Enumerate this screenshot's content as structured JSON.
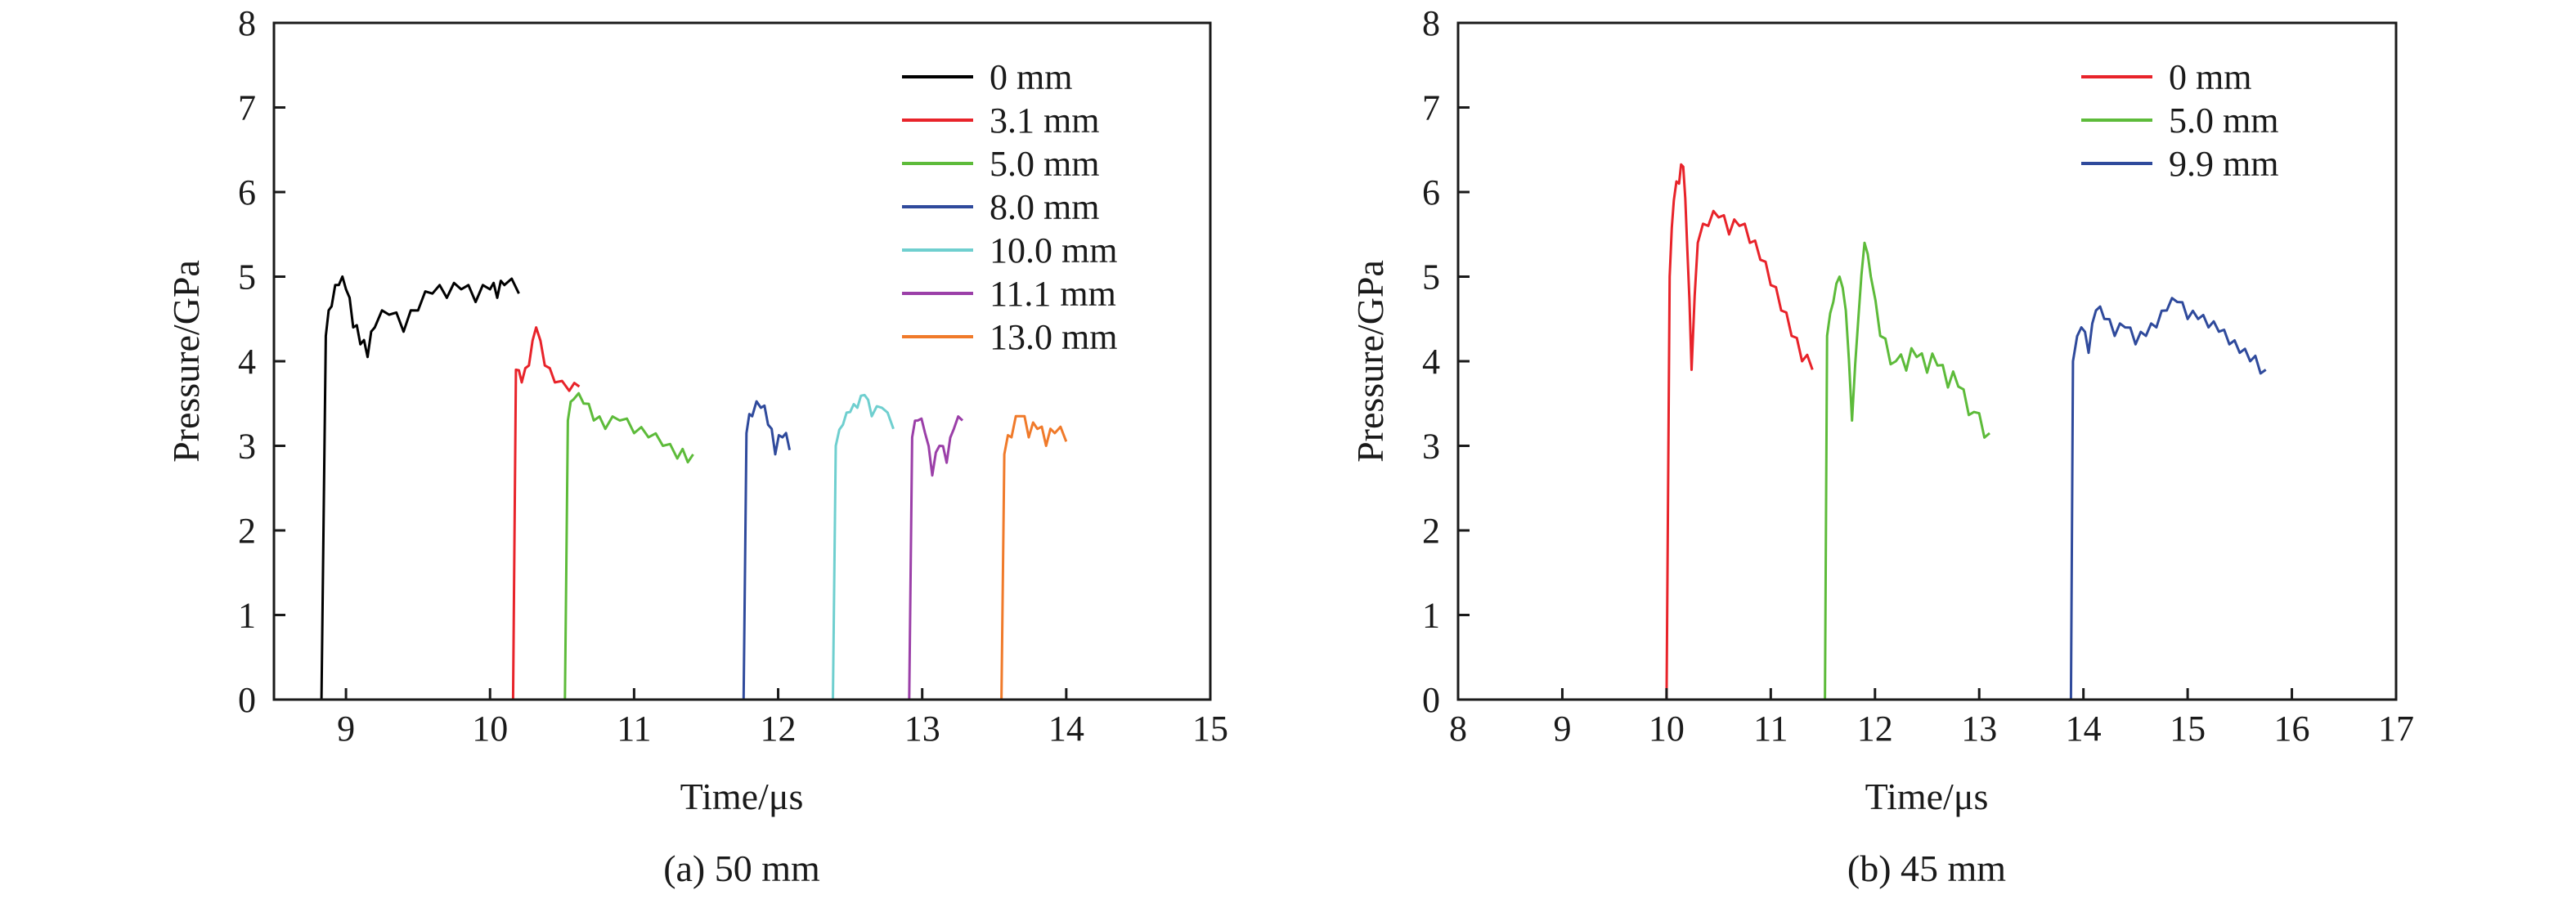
{
  "chart_data": [
    {
      "type": "line",
      "caption": "(a) 50 mm",
      "xlabel": "Time/μs",
      "ylabel": "Pressure/GPa",
      "xlim": [
        8.5,
        15
      ],
      "ylim": [
        0,
        8
      ],
      "xticks": [
        9,
        10,
        11,
        12,
        13,
        14,
        15
      ],
      "yticks": [
        0,
        1,
        2,
        3,
        4,
        5,
        6,
        7,
        8
      ],
      "grid": false,
      "legend": "top-right",
      "series": [
        {
          "name": "0 mm",
          "color": "#000000",
          "x": [
            8.5,
            8.83,
            8.86,
            8.9,
            8.95,
            9.0,
            9.05,
            9.1,
            9.15,
            9.2,
            9.3,
            9.4,
            9.5,
            9.6,
            9.7,
            9.8,
            9.9,
            10.0,
            10.05,
            10.1,
            10.2
          ],
          "y": [
            0,
            0,
            4.3,
            4.65,
            4.9,
            4.85,
            4.4,
            4.2,
            4.05,
            4.4,
            4.55,
            4.35,
            4.6,
            4.8,
            4.75,
            4.85,
            4.7,
            4.85,
            4.75,
            4.9,
            4.8
          ]
        },
        {
          "name": "3.1 mm",
          "color": "#e8232a",
          "x": [
            10.16,
            10.18,
            10.22,
            10.27,
            10.32,
            10.38,
            10.45,
            10.55,
            10.62
          ],
          "y": [
            0,
            3.9,
            3.75,
            3.95,
            4.4,
            3.95,
            3.75,
            3.65,
            3.7
          ]
        },
        {
          "name": "5.0 mm",
          "color": "#5dbb3a",
          "x": [
            10.52,
            10.54,
            10.58,
            10.65,
            10.72,
            10.8,
            10.9,
            11.0,
            11.1,
            11.2,
            11.3,
            11.41
          ],
          "y": [
            0,
            3.3,
            3.55,
            3.5,
            3.3,
            3.2,
            3.3,
            3.15,
            3.1,
            3.0,
            2.85,
            2.9
          ]
        },
        {
          "name": "8.0 mm",
          "color": "#2f4a9c",
          "x": [
            11.76,
            11.78,
            11.82,
            11.88,
            11.93,
            11.98,
            12.03,
            12.08
          ],
          "y": [
            0,
            3.15,
            3.35,
            3.45,
            3.25,
            2.9,
            3.1,
            2.95
          ]
        },
        {
          "name": "10.0 mm",
          "color": "#6fcfcf",
          "x": [
            12.38,
            12.4,
            12.45,
            12.5,
            12.55,
            12.6,
            12.65,
            12.72,
            12.8
          ],
          "y": [
            0,
            3.0,
            3.25,
            3.4,
            3.45,
            3.6,
            3.35,
            3.45,
            3.2
          ]
        },
        {
          "name": "11.1 mm",
          "color": "#9b3fa8",
          "x": [
            12.91,
            12.93,
            12.97,
            13.02,
            13.07,
            13.12,
            13.17,
            13.22,
            13.28
          ],
          "y": [
            0,
            3.1,
            3.3,
            3.15,
            2.65,
            3.0,
            2.8,
            3.2,
            3.3
          ]
        },
        {
          "name": "13.0 mm",
          "color": "#f07a2a",
          "x": [
            13.55,
            13.57,
            13.62,
            13.68,
            13.74,
            13.8,
            13.86,
            13.92,
            14.0
          ],
          "y": [
            0,
            2.9,
            3.1,
            3.35,
            3.1,
            3.2,
            3.0,
            3.15,
            3.05
          ]
        }
      ]
    },
    {
      "type": "line",
      "caption": "(b) 45 mm",
      "xlabel": "Time/μs",
      "ylabel": "Pressure/GPa",
      "xlim": [
        8,
        17
      ],
      "ylim": [
        0,
        8
      ],
      "xticks": [
        8,
        9,
        10,
        11,
        12,
        13,
        14,
        15,
        16,
        17
      ],
      "yticks": [
        0,
        1,
        2,
        3,
        4,
        5,
        6,
        7,
        8
      ],
      "grid": false,
      "legend": "top-right",
      "series": [
        {
          "name": "0 mm",
          "color": "#e8232a",
          "x": [
            8.0,
            10.0,
            10.03,
            10.07,
            10.12,
            10.16,
            10.2,
            10.24,
            10.3,
            10.4,
            10.5,
            10.6,
            10.7,
            10.8,
            10.9,
            11.0,
            11.1,
            11.2,
            11.3,
            11.4
          ],
          "y": [
            0,
            0,
            5.0,
            5.9,
            6.1,
            6.3,
            5.3,
            3.9,
            5.4,
            5.6,
            5.7,
            5.5,
            5.6,
            5.4,
            5.2,
            4.9,
            4.6,
            4.3,
            4.0,
            3.9
          ]
        },
        {
          "name": "5.0 mm",
          "color": "#5dbb3a",
          "x": [
            11.52,
            11.54,
            11.6,
            11.66,
            11.72,
            11.78,
            11.84,
            11.9,
            11.96,
            12.05,
            12.2,
            12.4,
            12.6,
            12.8,
            12.95,
            13.1
          ],
          "y": [
            0,
            4.3,
            4.7,
            5.0,
            4.6,
            3.3,
            4.5,
            5.4,
            5.0,
            4.3,
            4.0,
            4.05,
            3.95,
            3.7,
            3.4,
            3.15
          ]
        },
        {
          "name": "9.9 mm",
          "color": "#2f4a9c",
          "x": [
            13.88,
            13.9,
            13.98,
            14.05,
            14.12,
            14.2,
            14.3,
            14.4,
            14.5,
            14.6,
            14.7,
            14.8,
            14.9,
            15.0,
            15.1,
            15.2,
            15.3,
            15.4,
            15.5,
            15.6,
            15.75
          ],
          "y": [
            0,
            4.0,
            4.4,
            4.1,
            4.6,
            4.5,
            4.3,
            4.4,
            4.2,
            4.3,
            4.4,
            4.6,
            4.7,
            4.5,
            4.5,
            4.4,
            4.35,
            4.2,
            4.1,
            4.0,
            3.9
          ]
        }
      ]
    }
  ]
}
